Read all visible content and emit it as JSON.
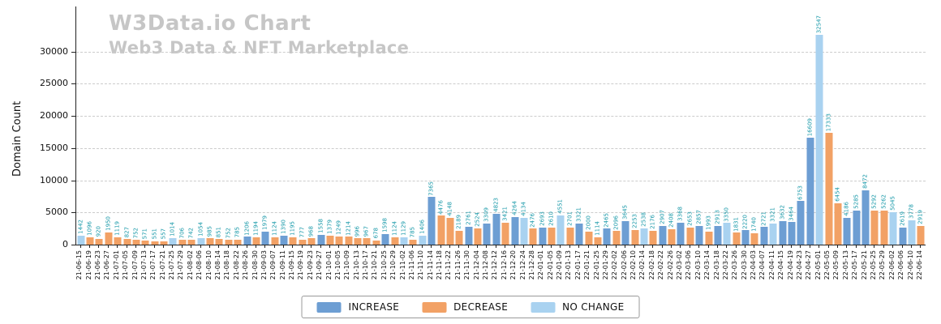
{
  "chart_data": {
    "type": "bar",
    "title": "W3Data.io Chart",
    "subtitle": "Web3 Data & NFT Marketplace",
    "ylabel": "Domain Count",
    "xlabel": "",
    "ylim": [
      0,
      37000
    ],
    "yticks": [
      0,
      5000,
      10000,
      15000,
      20000,
      25000,
      30000
    ],
    "grid": "dashed horizontal",
    "grid_color": "#cccccc",
    "value_label_color": "#1b9aaa",
    "legend_position": "bottom center",
    "series_colors": {
      "increase": "#6d9ed3",
      "decrease": "#f2a165",
      "nochange": "#a9d2f0"
    },
    "legend": [
      {
        "label": "INCREASE",
        "series": "increase"
      },
      {
        "label": "DECREASE",
        "series": "decrease"
      },
      {
        "label": "NO CHANGE",
        "series": "nochange"
      }
    ],
    "dates": [
      "21-06-15",
      "21-06-19",
      "21-06-23",
      "21-06-27",
      "21-07-01",
      "21-07-05",
      "21-07-09",
      "21-07-13",
      "21-07-17",
      "21-07-21",
      "21-07-25",
      "21-07-29",
      "21-08-02",
      "21-08-06",
      "21-08-10",
      "21-08-14",
      "21-08-18",
      "21-08-22",
      "21-08-26",
      "21-08-30",
      "21-09-03",
      "21-09-07",
      "21-09-11",
      "21-09-15",
      "21-09-19",
      "21-09-23",
      "21-09-27",
      "21-10-01",
      "21-10-05",
      "21-10-09",
      "21-10-13",
      "21-10-17",
      "21-10-21",
      "21-10-25",
      "21-10-29",
      "21-11-02",
      "21-11-06",
      "21-11-10",
      "21-11-14",
      "21-11-18",
      "21-11-22",
      "21-11-26",
      "21-11-30",
      "21-12-04",
      "21-12-08",
      "21-12-12",
      "21-12-16",
      "21-12-20",
      "21-12-24",
      "21-12-28",
      "22-01-01",
      "22-01-05",
      "22-01-09",
      "22-01-13",
      "22-01-17",
      "22-01-21",
      "22-01-25",
      "22-01-29",
      "22-02-02",
      "22-02-06",
      "22-02-10",
      "22-02-14",
      "22-02-18",
      "22-02-22",
      "22-02-26",
      "22-03-02",
      "22-03-06",
      "22-03-10",
      "22-03-14",
      "22-03-18",
      "22-03-22",
      "22-03-26",
      "22-03-30",
      "22-04-03",
      "22-04-07",
      "22-04-11",
      "22-04-15",
      "22-04-19",
      "22-04-23",
      "22-04-27",
      "22-05-01",
      "22-05-05",
      "22-05-09",
      "22-05-13",
      "22-05-17",
      "22-05-21",
      "22-05-25",
      "22-05-29",
      "22-06-02",
      "22-06-06",
      "22-06-10",
      "22-06-14"
    ],
    "values": [
      1442,
      1096,
      920,
      1950,
      1119,
      827,
      752,
      571,
      551,
      557,
      1014,
      706,
      742,
      1054,
      985,
      851,
      752,
      785,
      1206,
      1194,
      1979,
      1124,
      1390,
      1195,
      777,
      968,
      1558,
      1379,
      1249,
      1214,
      996,
      967,
      678,
      1598,
      1124,
      1129,
      785,
      1406,
      7365,
      4476,
      4148,
      2189,
      2761,
      2524,
      3309,
      4823,
      3421,
      4264,
      4134,
      2476,
      2693,
      2610,
      4551,
      2701,
      3321,
      2000,
      1114,
      2465,
      2096,
      3645,
      2253,
      2538,
      2176,
      2907,
      2408,
      3368,
      2653,
      2857,
      1993,
      2913,
      3350,
      1831,
      2220,
      1740,
      2721,
      3321,
      3632,
      3464,
      6753,
      16609,
      32547,
      17333,
      6454,
      4186,
      5285,
      8472,
      5292,
      5262,
      5045,
      2619,
      3778,
      2919
    ],
    "series": [
      "nochange",
      "decrease",
      "decrease",
      "decrease",
      "decrease",
      "decrease",
      "decrease",
      "decrease",
      "decrease",
      "decrease",
      "nochange",
      "decrease",
      "decrease",
      "nochange",
      "decrease",
      "decrease",
      "decrease",
      "decrease",
      "increase",
      "decrease",
      "increase",
      "decrease",
      "increase",
      "decrease",
      "decrease",
      "decrease",
      "increase",
      "decrease",
      "decrease",
      "decrease",
      "decrease",
      "decrease",
      "decrease",
      "increase",
      "decrease",
      "nochange",
      "decrease",
      "nochange",
      "increase",
      "decrease",
      "decrease",
      "decrease",
      "increase",
      "decrease",
      "increase",
      "increase",
      "decrease",
      "increase",
      "nochange",
      "decrease",
      "increase",
      "decrease",
      "nochange",
      "decrease",
      "increase",
      "decrease",
      "decrease",
      "increase",
      "decrease",
      "increase",
      "decrease",
      "nochange",
      "decrease",
      "increase",
      "decrease",
      "increase",
      "decrease",
      "increase",
      "decrease",
      "increase",
      "nochange",
      "decrease",
      "increase",
      "decrease",
      "increase",
      "nochange",
      "increase",
      "increase",
      "increase",
      "increase",
      "nochange",
      "decrease",
      "decrease",
      "increase",
      "increase",
      "increase",
      "decrease",
      "decrease",
      "nochange",
      "increase",
      "nochange",
      "decrease"
    ]
  }
}
